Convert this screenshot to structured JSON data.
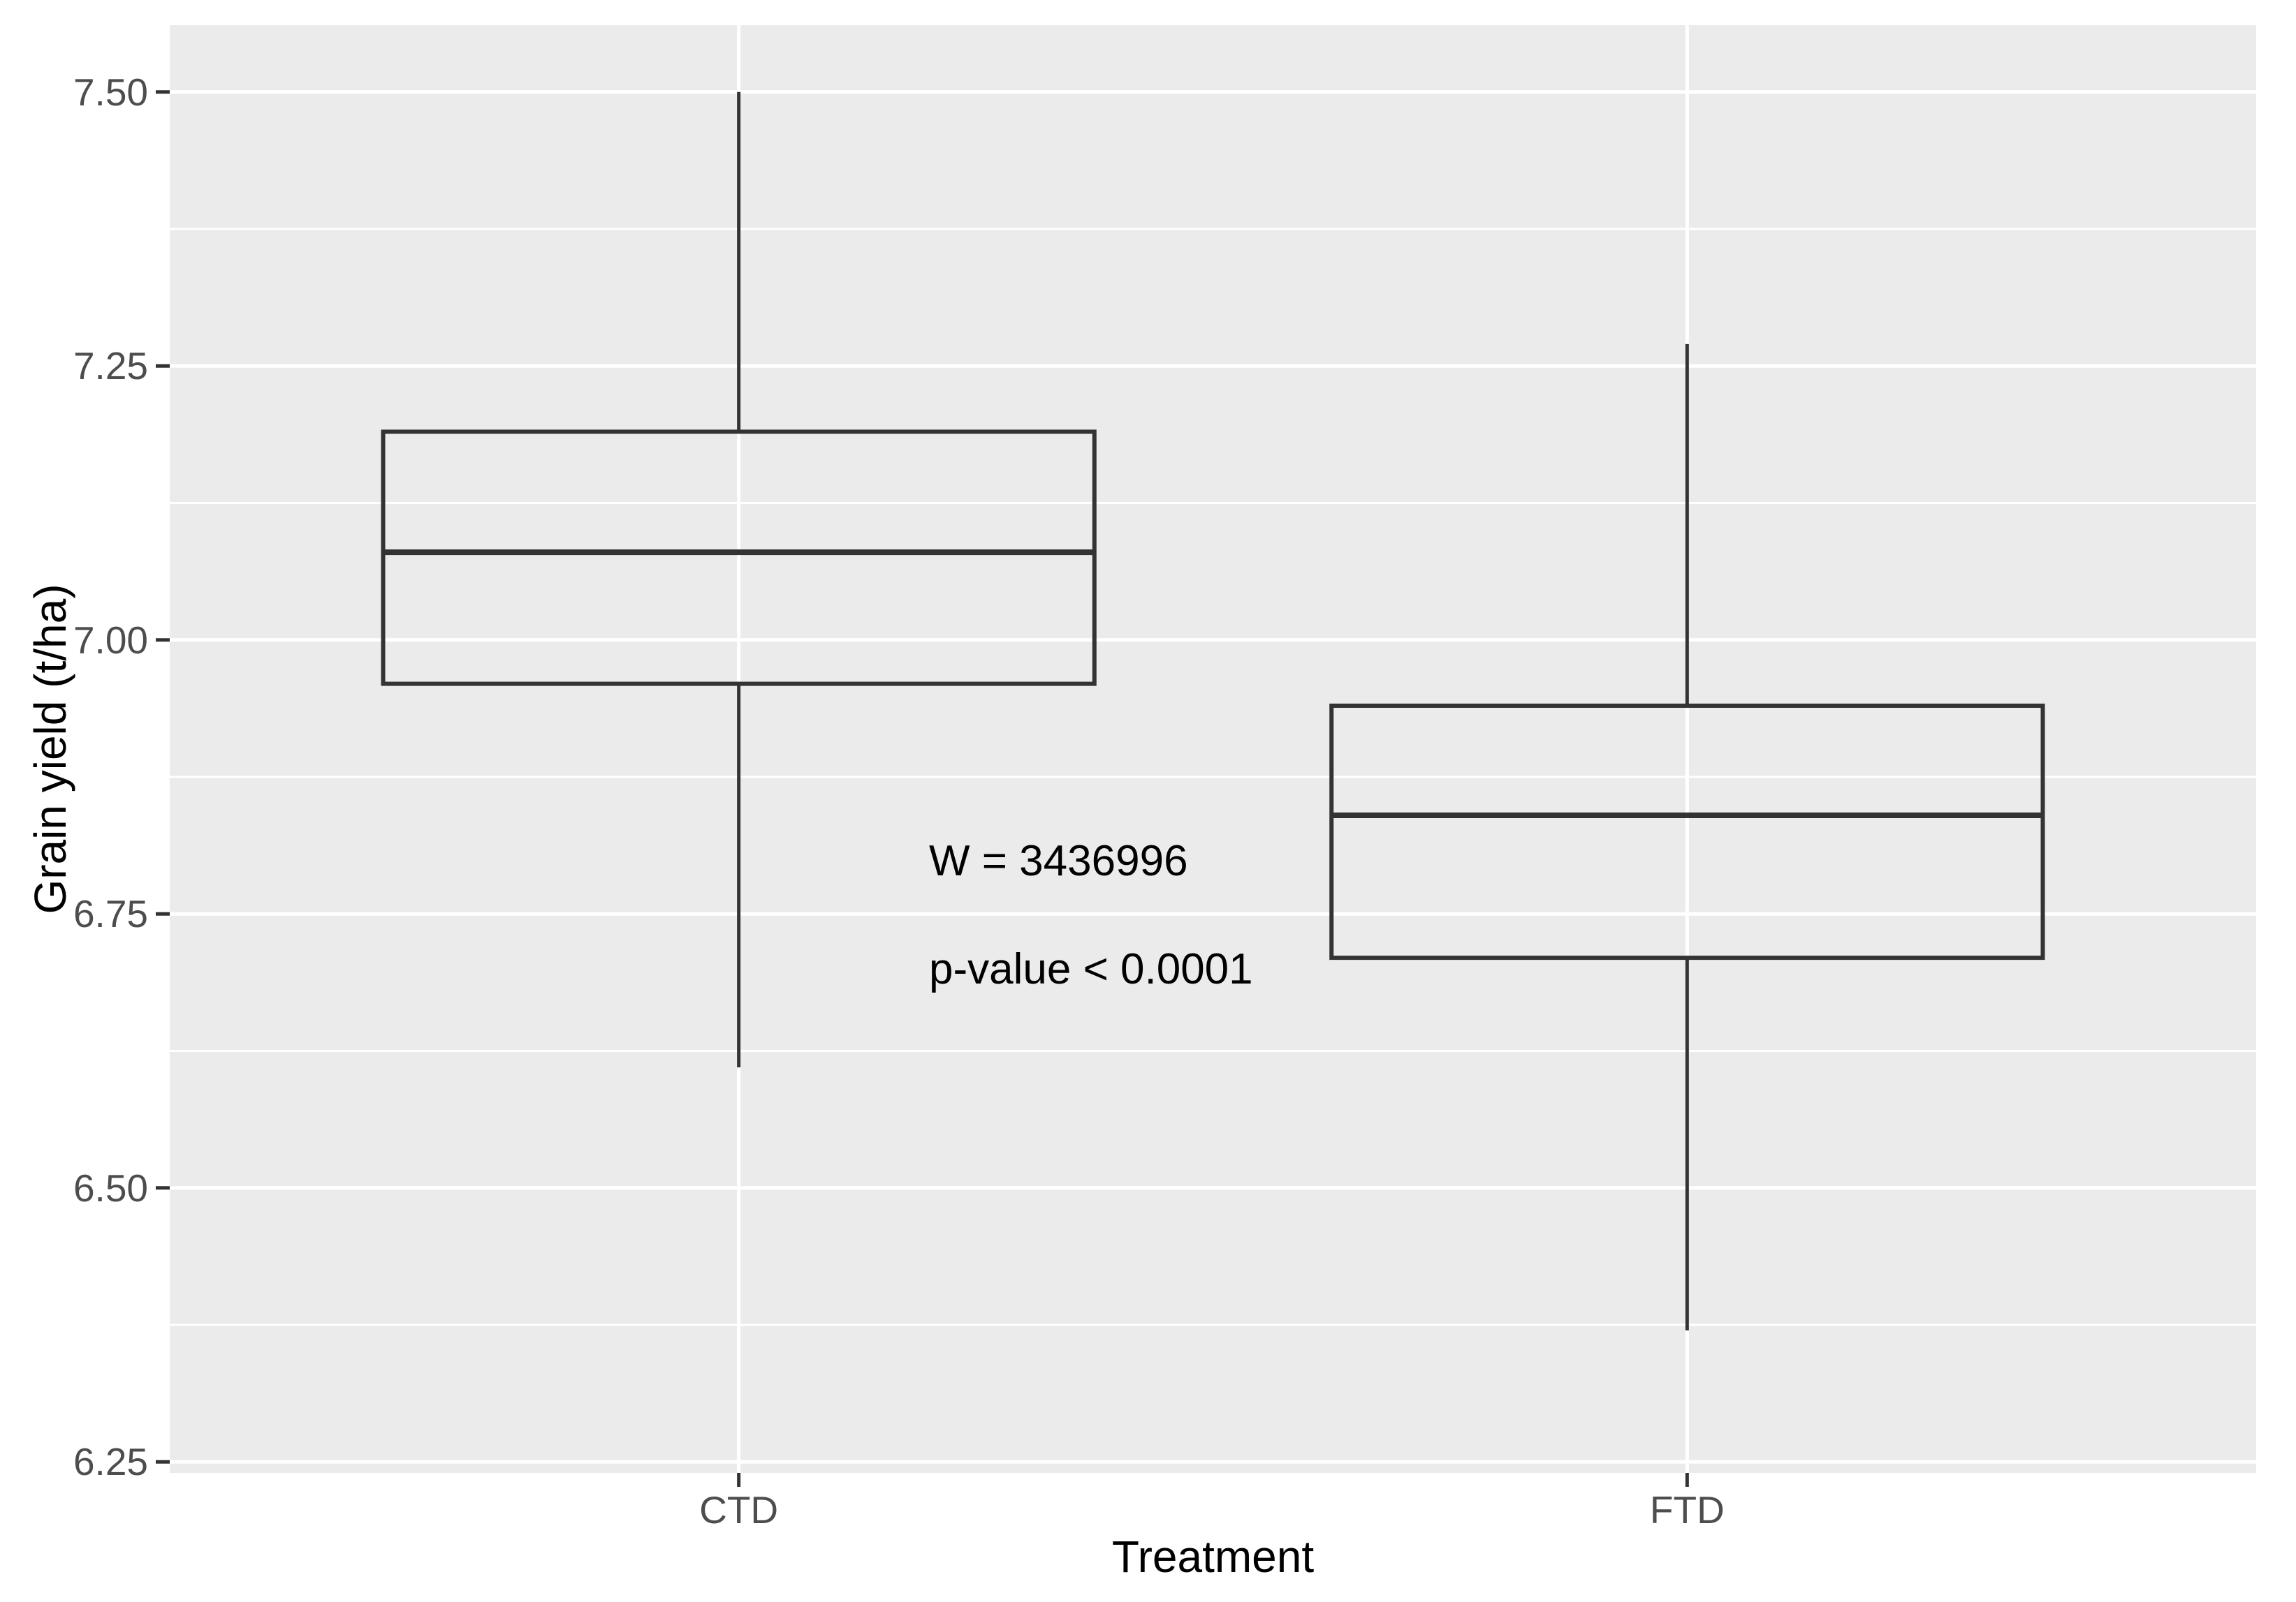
{
  "figure": {
    "background": "#FFFFFF"
  },
  "chart_data": {
    "type": "boxplot",
    "title": "",
    "xlabel": "Treatment",
    "ylabel": "Grain yield (t/ha)",
    "categories": [
      "CTD",
      "FTD"
    ],
    "y_ticks": [
      7.5,
      7.25,
      7.0,
      6.75,
      6.5,
      6.25
    ],
    "y_tick_labels": [
      "7.50",
      "7.25",
      "7.00",
      "6.75",
      "6.50",
      "6.25"
    ],
    "ylim": [
      6.24,
      7.561
    ],
    "series": [
      {
        "name": "CTD",
        "whisker_low": 6.61,
        "q1": 6.96,
        "median": 7.08,
        "q3": 7.19,
        "whisker_high": 7.5
      },
      {
        "name": "FTD",
        "whisker_low": 6.37,
        "q1": 6.71,
        "median": 6.84,
        "q3": 6.94,
        "whisker_high": 7.27
      }
    ],
    "annotations": [
      "W = 3436996",
      "p-value < 0.0001"
    ],
    "grid": {
      "horizontal_major": true,
      "horizontal_minor": true,
      "vertical_major_at_categories": true
    },
    "legend": "none",
    "colors": {
      "panel_background": "#EBEBEB",
      "gridline": "#FFFFFF",
      "box_stroke": "#333333",
      "tick_mark": "#333333",
      "axis_text": "#4D4D4D",
      "axis_title": "#000000",
      "annotation_text": "#000000"
    }
  }
}
